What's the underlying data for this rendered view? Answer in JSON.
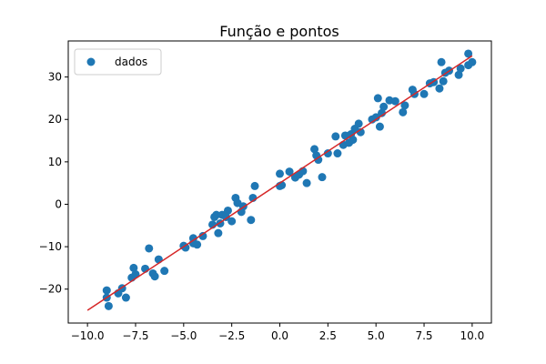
{
  "chart_data": {
    "type": "scatter",
    "title": "Função e pontos",
    "xlabel": "",
    "ylabel": "",
    "xlim": [
      -11.0,
      11.0
    ],
    "ylim": [
      -28.0,
      38.5
    ],
    "grid": false,
    "legend_position": "top-left",
    "x_ticks": [
      -10.0,
      -7.5,
      -5.0,
      -2.5,
      0.0,
      2.5,
      5.0,
      7.5,
      10.0
    ],
    "x_tick_labels": [
      "−10.0",
      "−7.5",
      "−5.0",
      "−2.5",
      "0.0",
      "2.5",
      "5.0",
      "7.5",
      "10.0"
    ],
    "y_ticks": [
      -20,
      -10,
      0,
      10,
      20,
      30
    ],
    "y_tick_labels": [
      "−20",
      "−10",
      "0",
      "10",
      "20",
      "30"
    ],
    "colors": {
      "points": "#1f77b4",
      "line": "#d62728",
      "axes": "#000000"
    },
    "series": [
      {
        "name": "dados",
        "kind": "scatter",
        "points": [
          [
            -9.0,
            -20.3
          ],
          [
            -9.0,
            -22.0
          ],
          [
            -8.9,
            -24.0
          ],
          [
            -8.4,
            -21.0
          ],
          [
            -8.2,
            -19.8
          ],
          [
            -8.0,
            -22.0
          ],
          [
            -7.7,
            -17.3
          ],
          [
            -7.6,
            -15.0
          ],
          [
            -7.5,
            -16.5
          ],
          [
            -7.0,
            -15.2
          ],
          [
            -6.8,
            -10.4
          ],
          [
            -6.6,
            -16.3
          ],
          [
            -6.5,
            -17.0
          ],
          [
            -6.3,
            -13.0
          ],
          [
            -6.0,
            -15.7
          ],
          [
            -5.0,
            -9.8
          ],
          [
            -4.9,
            -10.2
          ],
          [
            -4.5,
            -8.0
          ],
          [
            -4.5,
            -9.2
          ],
          [
            -4.3,
            -9.5
          ],
          [
            -4.0,
            -7.5
          ],
          [
            -3.5,
            -4.8
          ],
          [
            -3.4,
            -3.0
          ],
          [
            -3.3,
            -2.5
          ],
          [
            -3.2,
            -6.8
          ],
          [
            -3.1,
            -4.5
          ],
          [
            -3.0,
            -2.5
          ],
          [
            -2.8,
            -3.0
          ],
          [
            -2.7,
            -1.5
          ],
          [
            -2.5,
            -4.0
          ],
          [
            -2.3,
            1.5
          ],
          [
            -2.2,
            0.3
          ],
          [
            -2.0,
            -1.8
          ],
          [
            -1.9,
            -0.5
          ],
          [
            -1.5,
            -3.7
          ],
          [
            -1.4,
            1.5
          ],
          [
            -1.3,
            4.3
          ],
          [
            0.0,
            4.3
          ],
          [
            0.0,
            7.2
          ],
          [
            0.1,
            4.5
          ],
          [
            0.5,
            7.7
          ],
          [
            0.8,
            6.3
          ],
          [
            1.0,
            7.0
          ],
          [
            1.2,
            7.8
          ],
          [
            1.4,
            5.0
          ],
          [
            1.8,
            13.0
          ],
          [
            1.9,
            11.5
          ],
          [
            2.0,
            10.5
          ],
          [
            2.2,
            6.4
          ],
          [
            2.5,
            12.0
          ],
          [
            2.9,
            16.0
          ],
          [
            3.0,
            12.0
          ],
          [
            3.3,
            14.0
          ],
          [
            3.4,
            16.2
          ],
          [
            3.6,
            14.5
          ],
          [
            3.7,
            16.5
          ],
          [
            3.8,
            15.2
          ],
          [
            3.9,
            17.8
          ],
          [
            4.1,
            19.0
          ],
          [
            4.2,
            17.0
          ],
          [
            4.8,
            20.0
          ],
          [
            5.0,
            20.5
          ],
          [
            5.1,
            25.0
          ],
          [
            5.2,
            18.3
          ],
          [
            5.3,
            21.5
          ],
          [
            5.4,
            23.0
          ],
          [
            5.7,
            24.5
          ],
          [
            6.0,
            24.3
          ],
          [
            6.4,
            21.7
          ],
          [
            6.5,
            23.3
          ],
          [
            6.9,
            27.0
          ],
          [
            7.0,
            26.0
          ],
          [
            7.5,
            26.0
          ],
          [
            7.8,
            28.5
          ],
          [
            8.0,
            28.8
          ],
          [
            8.3,
            27.3
          ],
          [
            8.4,
            33.5
          ],
          [
            8.5,
            29.0
          ],
          [
            8.6,
            31.0
          ],
          [
            8.8,
            31.5
          ],
          [
            9.3,
            30.5
          ],
          [
            9.4,
            32.0
          ],
          [
            9.8,
            32.8
          ],
          [
            9.8,
            35.5
          ],
          [
            10.0,
            33.5
          ]
        ]
      },
      {
        "name": "",
        "kind": "line",
        "points": [
          [
            -10.0,
            -25.0
          ],
          [
            10.0,
            35.0
          ]
        ]
      }
    ]
  }
}
